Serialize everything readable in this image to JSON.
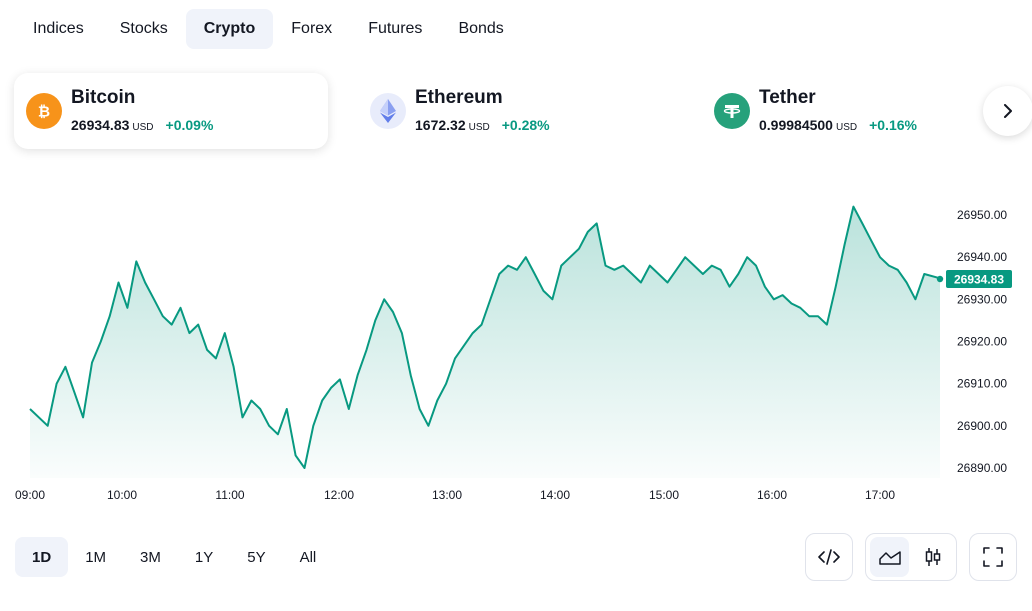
{
  "tabs": [
    {
      "label": "Indices",
      "active": false
    },
    {
      "label": "Stocks",
      "active": false
    },
    {
      "label": "Crypto",
      "active": true
    },
    {
      "label": "Forex",
      "active": false
    },
    {
      "label": "Futures",
      "active": false
    },
    {
      "label": "Bonds",
      "active": false
    }
  ],
  "tickers": [
    {
      "name": "Bitcoin",
      "price": "26934.83",
      "currency": "USD",
      "change": "+0.09%",
      "icon": "bitcoin-icon",
      "color": "#f7931a",
      "active": true
    },
    {
      "name": "Ethereum",
      "price": "1672.32",
      "currency": "USD",
      "change": "+0.28%",
      "icon": "ethereum-icon",
      "color": "#627eea",
      "active": false
    },
    {
      "name": "Tether",
      "price": "0.99984500",
      "currency": "USD",
      "change": "+0.16%",
      "icon": "tether-icon",
      "color": "#26a17b",
      "active": false
    }
  ],
  "ranges": [
    {
      "label": "1D",
      "active": true
    },
    {
      "label": "1M",
      "active": false
    },
    {
      "label": "3M",
      "active": false
    },
    {
      "label": "1Y",
      "active": false
    },
    {
      "label": "5Y",
      "active": false
    },
    {
      "label": "All",
      "active": false
    }
  ],
  "toolbar": {
    "embed_icon": "code-icon",
    "area_icon": "area-chart-icon",
    "candles_icon": "candlestick-icon",
    "fullscreen_icon": "fullscreen-icon",
    "next_icon": "chevron-right-icon"
  },
  "colors": {
    "line": "#089981",
    "positive": "#089981",
    "active_bg": "#f0f3fa"
  },
  "chart_data": {
    "type": "area",
    "title": "",
    "xlabel": "",
    "ylabel": "",
    "x_ticks": [
      "09:00",
      "10:00",
      "11:00",
      "12:00",
      "13:00",
      "14:00",
      "15:00",
      "16:00",
      "17:00"
    ],
    "y_ticks": [
      26890.0,
      26900.0,
      26910.0,
      26920.0,
      26930.0,
      26940.0,
      26950.0
    ],
    "y_tick_labels": [
      "26890.00",
      "26900.00",
      "26910.00",
      "26920.00",
      "26930.00",
      "26940.00",
      "26950.00"
    ],
    "ylim": [
      26885.0,
      26957.0
    ],
    "xlim": [
      "09:00",
      "17:30"
    ],
    "last_price": 26934.83,
    "last_price_label": "26934.83",
    "grid": false,
    "series": [
      {
        "x": [
          "09:00",
          "09:10",
          "09:15",
          "09:20",
          "09:25",
          "09:30",
          "09:35",
          "09:40",
          "09:45",
          "09:50",
          "09:55",
          "10:00",
          "10:05",
          "10:10",
          "10:15",
          "10:20",
          "10:25",
          "10:30",
          "10:35",
          "10:40",
          "10:45",
          "10:50",
          "10:55",
          "11:00",
          "11:05",
          "11:10",
          "11:15",
          "11:20",
          "11:25",
          "11:30",
          "11:35",
          "11:40",
          "11:45",
          "11:50",
          "11:55",
          "12:00",
          "12:05",
          "12:10",
          "12:15",
          "12:20",
          "12:25",
          "12:30",
          "12:35",
          "12:40",
          "12:45",
          "12:50",
          "12:55",
          "13:00",
          "13:05",
          "13:10",
          "13:15",
          "13:20",
          "13:25",
          "13:30",
          "13:35",
          "13:40",
          "13:45",
          "13:50",
          "13:55",
          "14:00",
          "14:05",
          "14:10",
          "14:15",
          "14:20",
          "14:25",
          "14:30",
          "14:35",
          "14:40",
          "14:45",
          "14:50",
          "14:55",
          "15:00",
          "15:05",
          "15:10",
          "15:15",
          "15:20",
          "15:25",
          "15:30",
          "15:35",
          "15:40",
          "15:45",
          "15:50",
          "15:55",
          "16:00",
          "16:05",
          "16:10",
          "16:15",
          "16:20",
          "16:25",
          "16:30",
          "16:35",
          "16:40",
          "16:45",
          "16:50",
          "16:55",
          "17:00",
          "17:05",
          "17:10",
          "17:15",
          "17:20",
          "17:25",
          "17:30"
        ],
        "y": [
          26904,
          26900,
          26910,
          26914,
          26908,
          26902,
          26915,
          26920,
          26926,
          26934,
          26928,
          26939,
          26934,
          26930,
          26926,
          26924,
          26928,
          26922,
          26924,
          26918,
          26916,
          26922,
          26914,
          26902,
          26906,
          26904,
          26900,
          26898,
          26904,
          26893,
          26890,
          26900,
          26906,
          26909,
          26911,
          26904,
          26912,
          26918,
          26925,
          26930,
          26927,
          26922,
          26912,
          26904,
          26900,
          26906,
          26910,
          26916,
          26919,
          26922,
          26924,
          26930,
          26936,
          26938,
          26937,
          26940,
          26936,
          26932,
          26930,
          26938,
          26940,
          26942,
          26946,
          26948,
          26938,
          26937,
          26938,
          26936,
          26934,
          26938,
          26936,
          26934,
          26937,
          26940,
          26938,
          26936,
          26938,
          26937,
          26933,
          26936,
          26940,
          26938,
          26933,
          26930,
          26931,
          26929,
          26928,
          26926,
          26926,
          26924,
          26933,
          26943,
          26952,
          26948,
          26944,
          26940,
          26938,
          26937,
          26934,
          26930,
          26936,
          26935
        ]
      }
    ]
  }
}
